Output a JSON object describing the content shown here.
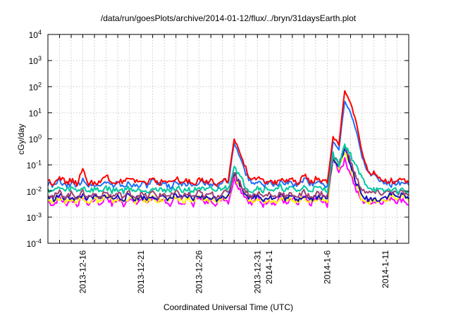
{
  "chart_data": {
    "type": "line",
    "title": "/data/run/goesPlots/archive/2014-01-12/flux/../bryn/31daysEarth.plot",
    "xlabel": "Coordinated Universal Time (UTC)",
    "ylabel": "cGy/day",
    "yscale": "log",
    "ylim": [
      0.0001,
      10000
    ],
    "ytick_values": [
      0.0001,
      0.001,
      0.01,
      0.1,
      1,
      10,
      100,
      1000,
      10000
    ],
    "ytick_bases": [
      "10",
      "10",
      "10",
      "10",
      "10",
      "10",
      "10",
      "10",
      "10"
    ],
    "ytick_exponents": [
      "-4",
      "-3",
      "-2",
      "-1",
      "0",
      "1",
      "2",
      "3",
      "4"
    ],
    "x_unit": "days since 2013-12-13 00:00 UTC",
    "xlim": [
      0,
      31
    ],
    "xtick_minor_step_days": 1,
    "xtick_labels": [
      {
        "day": 3,
        "label": "2013-12-16"
      },
      {
        "day": 8,
        "label": "2013-12-21"
      },
      {
        "day": 13,
        "label": "2013-12-26"
      },
      {
        "day": 18,
        "label": "2013-12-31"
      },
      {
        "day": 19,
        "label": "2014-1-1"
      },
      {
        "day": 24,
        "label": "2014-1-6"
      },
      {
        "day": 29,
        "label": "2014-1-11"
      }
    ],
    "grid": true,
    "x_step_days": 0.5,
    "series": [
      {
        "name": "series-magenta",
        "color": "#ff00ff",
        "values": [
          0.004,
          0.003,
          0.006,
          0.003,
          0.005,
          0.003,
          0.006,
          0.003,
          0.005,
          0.003,
          0.007,
          0.003,
          0.005,
          0.003,
          0.006,
          0.003,
          0.005,
          0.004,
          0.006,
          0.003,
          0.005,
          0.003,
          0.006,
          0.003,
          0.005,
          0.003,
          0.007,
          0.003,
          0.005,
          0.003,
          0.006,
          0.004,
          0.03,
          0.012,
          0.006,
          0.003,
          0.006,
          0.003,
          0.005,
          0.003,
          0.006,
          0.003,
          0.005,
          0.003,
          0.006,
          0.003,
          0.005,
          0.004,
          0.003,
          0.2,
          0.06,
          0.15,
          0.05,
          0.01,
          0.004,
          0.004,
          0.004,
          0.004,
          0.004,
          0.006,
          0.004,
          0.005,
          0.003
        ]
      },
      {
        "name": "series-yellow",
        "color": "#ffff00",
        "values": [
          0.005,
          0.004,
          0.006,
          0.004,
          0.005,
          0.004,
          0.006,
          0.004,
          0.005,
          0.004,
          0.006,
          0.004,
          0.005,
          0.004,
          0.006,
          0.004,
          0.005,
          0.004,
          0.006,
          0.004,
          0.005,
          0.004,
          0.006,
          0.004,
          0.005,
          0.004,
          0.006,
          0.004,
          0.005,
          0.004,
          0.006,
          0.005,
          0.04,
          0.015,
          0.007,
          0.004,
          0.006,
          0.004,
          0.005,
          0.004,
          0.006,
          0.004,
          0.005,
          0.004,
          0.006,
          0.004,
          0.005,
          0.005,
          0.004,
          0.2,
          0.08,
          0.3,
          0.08,
          0.015,
          0.005,
          0.004,
          0.004,
          0.004,
          0.004,
          0.007,
          0.005,
          0.006,
          0.004
        ]
      },
      {
        "name": "series-navy",
        "color": "#1010c0",
        "values": [
          0.006,
          0.005,
          0.007,
          0.005,
          0.006,
          0.005,
          0.007,
          0.005,
          0.006,
          0.005,
          0.007,
          0.005,
          0.006,
          0.005,
          0.007,
          0.005,
          0.006,
          0.005,
          0.007,
          0.005,
          0.006,
          0.005,
          0.007,
          0.005,
          0.006,
          0.005,
          0.007,
          0.005,
          0.006,
          0.005,
          0.007,
          0.006,
          0.05,
          0.018,
          0.008,
          0.005,
          0.007,
          0.005,
          0.006,
          0.005,
          0.007,
          0.005,
          0.006,
          0.005,
          0.007,
          0.005,
          0.006,
          0.006,
          0.005,
          0.2,
          0.1,
          0.4,
          0.1,
          0.02,
          0.006,
          0.005,
          0.005,
          0.005,
          0.006,
          0.008,
          0.006,
          0.007,
          0.005
        ]
      },
      {
        "name": "series-mauve",
        "color": "#a04070",
        "values": [
          0.008,
          0.006,
          0.009,
          0.006,
          0.008,
          0.006,
          0.009,
          0.006,
          0.008,
          0.006,
          0.009,
          0.006,
          0.008,
          0.006,
          0.009,
          0.006,
          0.008,
          0.006,
          0.009,
          0.006,
          0.008,
          0.006,
          0.009,
          0.006,
          0.008,
          0.006,
          0.009,
          0.006,
          0.008,
          0.006,
          0.009,
          0.008,
          0.06,
          0.02,
          0.01,
          0.006,
          0.009,
          0.006,
          0.008,
          0.006,
          0.009,
          0.006,
          0.008,
          0.006,
          0.009,
          0.006,
          0.008,
          0.008,
          0.006,
          0.2,
          0.12,
          0.5,
          0.15,
          0.03,
          0.012,
          0.008,
          0.009,
          0.008,
          0.009,
          0.01,
          0.008,
          0.009,
          0.007
        ]
      },
      {
        "name": "series-teal",
        "color": "#00c8a0",
        "values": [
          0.012,
          0.01,
          0.014,
          0.01,
          0.013,
          0.01,
          0.014,
          0.01,
          0.012,
          0.01,
          0.014,
          0.01,
          0.012,
          0.01,
          0.014,
          0.01,
          0.012,
          0.01,
          0.014,
          0.01,
          0.012,
          0.01,
          0.014,
          0.01,
          0.012,
          0.01,
          0.014,
          0.01,
          0.012,
          0.01,
          0.014,
          0.012,
          0.1,
          0.035,
          0.015,
          0.01,
          0.014,
          0.011,
          0.013,
          0.01,
          0.014,
          0.011,
          0.013,
          0.01,
          0.014,
          0.011,
          0.013,
          0.012,
          0.011,
          0.25,
          0.1,
          0.6,
          0.25,
          0.08,
          0.03,
          0.015,
          0.012,
          0.01,
          0.01,
          0.012,
          0.01,
          0.011,
          0.01
        ]
      },
      {
        "name": "series-blue",
        "color": "#1e70ff",
        "values": [
          0.02,
          0.015,
          0.025,
          0.015,
          0.02,
          0.015,
          0.03,
          0.016,
          0.018,
          0.015,
          0.025,
          0.016,
          0.02,
          0.015,
          0.022,
          0.015,
          0.02,
          0.015,
          0.025,
          0.016,
          0.02,
          0.015,
          0.025,
          0.016,
          0.02,
          0.015,
          0.025,
          0.016,
          0.02,
          0.015,
          0.025,
          0.02,
          0.7,
          0.2,
          0.05,
          0.02,
          0.025,
          0.017,
          0.02,
          0.016,
          0.025,
          0.018,
          0.02,
          0.016,
          0.03,
          0.018,
          0.022,
          0.02,
          0.016,
          0.8,
          0.4,
          30,
          10,
          2,
          0.2,
          0.05,
          0.04,
          0.025,
          0.02,
          0.018,
          0.02,
          0.018,
          0.017
        ]
      },
      {
        "name": "series-red",
        "color": "#ff0000",
        "values": [
          0.025,
          0.02,
          0.04,
          0.02,
          0.025,
          0.02,
          0.06,
          0.02,
          0.022,
          0.02,
          0.04,
          0.02,
          0.025,
          0.02,
          0.03,
          0.02,
          0.025,
          0.02,
          0.035,
          0.02,
          0.025,
          0.02,
          0.03,
          0.02,
          0.025,
          0.02,
          0.03,
          0.02,
          0.025,
          0.02,
          0.03,
          0.025,
          1.0,
          0.3,
          0.07,
          0.025,
          0.03,
          0.022,
          0.025,
          0.02,
          0.03,
          0.022,
          0.025,
          0.02,
          0.04,
          0.022,
          0.03,
          0.025,
          0.02,
          1.2,
          0.6,
          70,
          25,
          4,
          0.3,
          0.06,
          0.05,
          0.03,
          0.026,
          0.025,
          0.024,
          0.024,
          0.022
        ]
      }
    ]
  }
}
